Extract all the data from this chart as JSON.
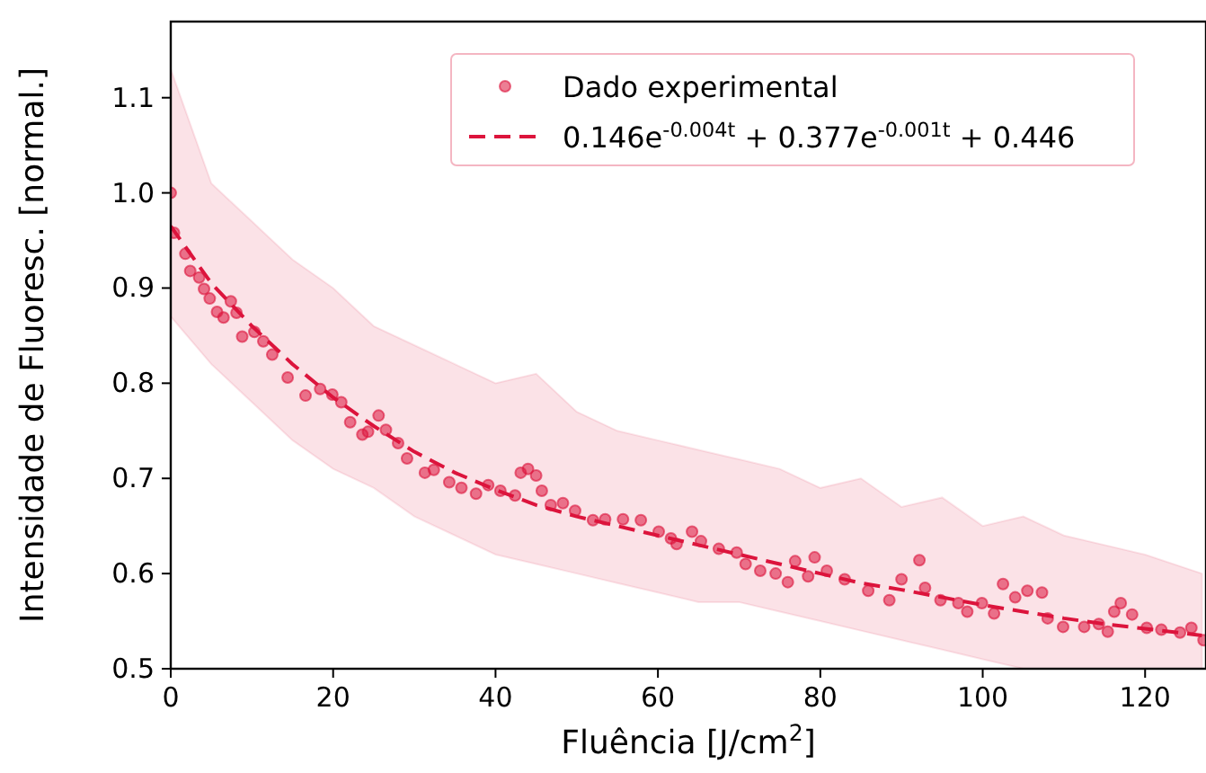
{
  "chart_data": {
    "type": "scatter",
    "xlabel": "Fluência [J/cm$^{2}$]",
    "ylabel": "Intensidade de Fluoresc. [normal.]",
    "xlim": [
      0,
      127.5
    ],
    "ylim": [
      0.5,
      1.18
    ],
    "xticks": [
      0,
      20,
      40,
      60,
      80,
      100,
      120
    ],
    "yticks": [
      0.5,
      0.6,
      0.7,
      0.8,
      0.9,
      {
        "value": 1,
        "label": "1.0"
      },
      1.1
    ],
    "grid": false,
    "legend": "top right",
    "series": [
      {
        "name": "Dado experimental",
        "marker": "circle",
        "color": "#dc143c",
        "x": [
          0,
          0.4,
          1.8,
          2.4,
          3.5,
          4.1,
          4.8,
          5.7,
          6.5,
          7.4,
          8.1,
          8.8,
          10.3,
          11.4,
          12.5,
          14.4,
          16.6,
          18.4,
          19.9,
          21,
          22.1,
          23.6,
          24.3,
          25.6,
          26.5,
          28,
          29.1,
          31.3,
          32.4,
          34.3,
          35.8,
          37.6,
          39.1,
          40.6,
          42.4,
          43.1,
          44,
          45,
          45.7,
          46.8,
          48.3,
          49.8,
          52,
          53.5,
          55.7,
          57.9,
          60.1,
          61.6,
          62.3,
          64.2,
          65.3,
          67.5,
          69.7,
          70.8,
          72.6,
          74.5,
          76,
          76.9,
          78.5,
          79.3,
          80.8,
          83,
          85.9,
          88.5,
          90,
          92.2,
          92.9,
          94.8,
          97,
          98.1,
          99.9,
          101.4,
          102.5,
          104,
          105.5,
          107.3,
          108,
          109.9,
          112.5,
          114.3,
          115.4,
          116.2,
          117,
          118.4,
          120.2,
          122,
          124.3,
          125.7,
          127.2
        ],
        "values": [
          1.0,
          0.958,
          0.936,
          0.918,
          0.911,
          0.899,
          0.889,
          0.875,
          0.869,
          0.886,
          0.874,
          0.849,
          0.854,
          0.844,
          0.83,
          0.806,
          0.787,
          0.794,
          0.788,
          0.78,
          0.759,
          0.746,
          0.749,
          0.766,
          0.751,
          0.737,
          0.721,
          0.706,
          0.709,
          0.696,
          0.69,
          0.684,
          0.693,
          0.687,
          0.682,
          0.706,
          0.71,
          0.703,
          0.687,
          0.672,
          0.674,
          0.666,
          0.656,
          0.657,
          0.657,
          0.656,
          0.644,
          0.637,
          0.631,
          0.644,
          0.634,
          0.626,
          0.622,
          0.61,
          0.603,
          0.6,
          0.591,
          0.613,
          0.597,
          0.617,
          0.603,
          0.594,
          0.582,
          0.572,
          0.594,
          0.614,
          0.585,
          0.572,
          0.569,
          0.56,
          0.569,
          0.558,
          0.589,
          0.575,
          0.582,
          0.58,
          0.553,
          0.544,
          0.544,
          0.547,
          0.539,
          0.56,
          0.569,
          0.557,
          0.543,
          0.541,
          0.538,
          0.543,
          0.53
        ]
      },
      {
        "name": "0.146e$^{-0.004t}$ + 0.377e$^{-0.001t}$ + 0.446",
        "type": "line",
        "line_style": "dashed",
        "color": "#dc143c",
        "x": [
          0,
          5,
          10,
          15,
          20,
          25,
          30,
          35,
          40,
          45,
          50,
          55,
          60,
          65,
          70,
          75,
          80,
          85,
          90,
          95,
          100,
          105,
          110,
          115,
          120,
          127
        ],
        "values": [
          0.965,
          0.905,
          0.86,
          0.82,
          0.785,
          0.755,
          0.728,
          0.706,
          0.688,
          0.672,
          0.66,
          0.65,
          0.64,
          0.63,
          0.62,
          0.61,
          0.6,
          0.59,
          0.583,
          0.575,
          0.567,
          0.56,
          0.553,
          0.547,
          0.542,
          0.535
        ],
        "upper": [
          1.13,
          1.01,
          0.97,
          0.93,
          0.9,
          0.86,
          0.84,
          0.82,
          0.8,
          0.81,
          0.77,
          0.75,
          0.74,
          0.73,
          0.72,
          0.71,
          0.69,
          0.7,
          0.67,
          0.68,
          0.65,
          0.66,
          0.64,
          0.63,
          0.62,
          0.6
        ],
        "lower": [
          0.87,
          0.82,
          0.78,
          0.74,
          0.71,
          0.69,
          0.66,
          0.64,
          0.62,
          0.61,
          0.6,
          0.59,
          0.58,
          0.57,
          0.57,
          0.56,
          0.55,
          0.54,
          0.53,
          0.52,
          0.51,
          0.5,
          0.5,
          0.5,
          0.5,
          0.5
        ]
      }
    ]
  }
}
